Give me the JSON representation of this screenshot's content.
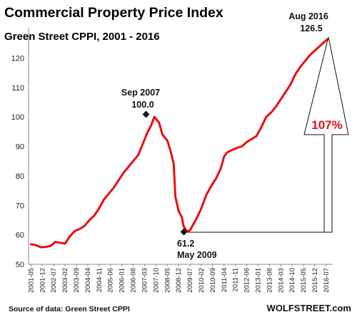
{
  "chart_data": {
    "type": "line",
    "title": "Commercial Property Price Index",
    "subtitle": "Green Street CPPI, 2001 - 2016",
    "source": "Source of data: Green Street CPPI",
    "watermark": "WOLFSTREET.com",
    "ylim": [
      50,
      130
    ],
    "yticks": [
      50,
      60,
      70,
      80,
      90,
      100,
      110,
      120
    ],
    "grid": false,
    "x_tick_labels": [
      "2001-05",
      "2001-12",
      "2002-07",
      "2003-02",
      "2003-09",
      "2004-04",
      "2004-11",
      "2005-06",
      "2006-01",
      "2006-08",
      "2007-03",
      "2007-10",
      "2008-05",
      "2008-12",
      "2009-07",
      "2010-02",
      "2010-09",
      "2011-04",
      "2011-11",
      "2012-06",
      "2013-01",
      "2013-08",
      "2014-03",
      "2014-10",
      "2015-05",
      "2015-12",
      "2016-07"
    ],
    "series": [
      {
        "color": "#e8100e",
        "points": [
          [
            "2001-05",
            56.8
          ],
          [
            "2001-08",
            56.5
          ],
          [
            "2001-11",
            55.8
          ],
          [
            "2002-02",
            55.9
          ],
          [
            "2002-05",
            56.2
          ],
          [
            "2002-08",
            57.6
          ],
          [
            "2002-11",
            57.3
          ],
          [
            "2003-02",
            57.0
          ],
          [
            "2003-05",
            59.5
          ],
          [
            "2003-08",
            61.3
          ],
          [
            "2003-11",
            62.0
          ],
          [
            "2004-02",
            63.0
          ],
          [
            "2004-05",
            65.0
          ],
          [
            "2004-08",
            66.5
          ],
          [
            "2004-11",
            69.0
          ],
          [
            "2005-02",
            72.0
          ],
          [
            "2005-05",
            74.0
          ],
          [
            "2005-08",
            76.0
          ],
          [
            "2005-11",
            78.5
          ],
          [
            "2006-02",
            81.0
          ],
          [
            "2006-05",
            83.0
          ],
          [
            "2006-08",
            85.0
          ],
          [
            "2006-11",
            87.0
          ],
          [
            "2007-02",
            91.0
          ],
          [
            "2007-05",
            95.0
          ],
          [
            "2007-07",
            97.0
          ],
          [
            "2007-09",
            100.0
          ],
          [
            "2007-12",
            98.0
          ],
          [
            "2008-02",
            94.0
          ],
          [
            "2008-05",
            92.0
          ],
          [
            "2008-07",
            88.5
          ],
          [
            "2008-09",
            84.0
          ],
          [
            "2008-10",
            73.0
          ],
          [
            "2008-12",
            68.0
          ],
          [
            "2009-02",
            66.0
          ],
          [
            "2009-03",
            63.0
          ],
          [
            "2009-05",
            61.2
          ],
          [
            "2009-07",
            61.5
          ],
          [
            "2009-09",
            63.5
          ],
          [
            "2009-11",
            65.5
          ],
          [
            "2010-02",
            69.0
          ],
          [
            "2010-05",
            73.5
          ],
          [
            "2010-08",
            76.5
          ],
          [
            "2010-11",
            79.0
          ],
          [
            "2011-02",
            82.5
          ],
          [
            "2011-04",
            86.5
          ],
          [
            "2011-06",
            88.0
          ],
          [
            "2011-09",
            88.8
          ],
          [
            "2011-12",
            89.5
          ],
          [
            "2012-03",
            90.0
          ],
          [
            "2012-06",
            91.5
          ],
          [
            "2012-09",
            92.5
          ],
          [
            "2012-12",
            93.5
          ],
          [
            "2013-03",
            96.5
          ],
          [
            "2013-06",
            100.0
          ],
          [
            "2013-09",
            101.5
          ],
          [
            "2013-12",
            103.5
          ],
          [
            "2014-03",
            106.0
          ],
          [
            "2014-06",
            108.5
          ],
          [
            "2014-09",
            111.0
          ],
          [
            "2014-12",
            114.5
          ],
          [
            "2015-03",
            117.0
          ],
          [
            "2015-06",
            119.0
          ],
          [
            "2015-09",
            121.0
          ],
          [
            "2015-12",
            122.5
          ],
          [
            "2016-03",
            124.0
          ],
          [
            "2016-06",
            125.5
          ],
          [
            "2016-08",
            126.5
          ]
        ]
      }
    ],
    "annotations": [
      {
        "date": "Sep 2007",
        "value": "100.0"
      },
      {
        "date": "May 2009",
        "value": "61.2"
      },
      {
        "date": "Aug 2016",
        "value": "126.5"
      },
      {
        "label": "107%"
      }
    ]
  }
}
